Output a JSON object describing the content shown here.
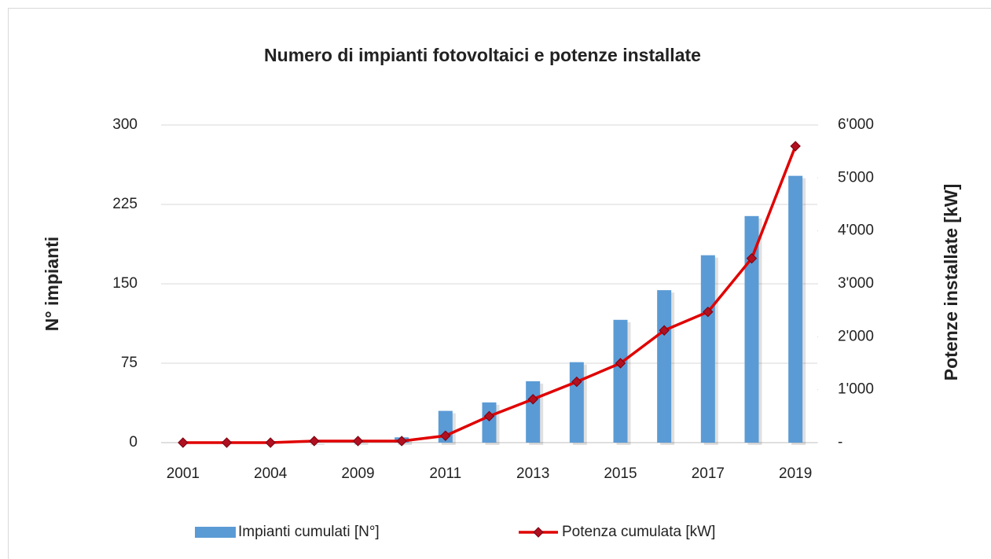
{
  "chart_data": {
    "type": "bar_line",
    "title": "Numero di impianti fotovoltaici e potenze installate",
    "ylabel": "N° impianti",
    "y2label": "Potenze installate [kW]",
    "categories": [
      "2001",
      null,
      "2004",
      null,
      "2009",
      null,
      "2011",
      null,
      "2013",
      null,
      "2015",
      null,
      "2017",
      null,
      "2019"
    ],
    "series": [
      {
        "name": "Impianti cumulati [N°]",
        "color": "#5b9bd5",
        "kind": "bar",
        "values": [
          0,
          0,
          0,
          1,
          2,
          5,
          30,
          38,
          58,
          76,
          116,
          144,
          177,
          214,
          252
        ]
      },
      {
        "name": "Potenza cumulata [kW]",
        "color": "#e00000",
        "marker_color": "#b01020",
        "kind": "line",
        "axis": "y2",
        "values": [
          0,
          0,
          0,
          30,
          30,
          30,
          130,
          500,
          820,
          1150,
          1500,
          2120,
          2470,
          3480,
          5600
        ]
      }
    ],
    "ylim": [
      0,
      300
    ],
    "yticks": [
      0,
      75,
      150,
      225,
      300
    ],
    "y2lim": [
      0,
      6000
    ],
    "y2ticks": [
      {
        "value": 0,
        "label": "-"
      },
      {
        "value": 1000,
        "label": "1'000"
      },
      {
        "value": 2000,
        "label": "2'000"
      },
      {
        "value": 3000,
        "label": "3'000"
      },
      {
        "value": 4000,
        "label": "4'000"
      },
      {
        "value": 5000,
        "label": "5'000"
      },
      {
        "value": 6000,
        "label": "6'000"
      }
    ],
    "grid": true,
    "legend": "bottom"
  }
}
